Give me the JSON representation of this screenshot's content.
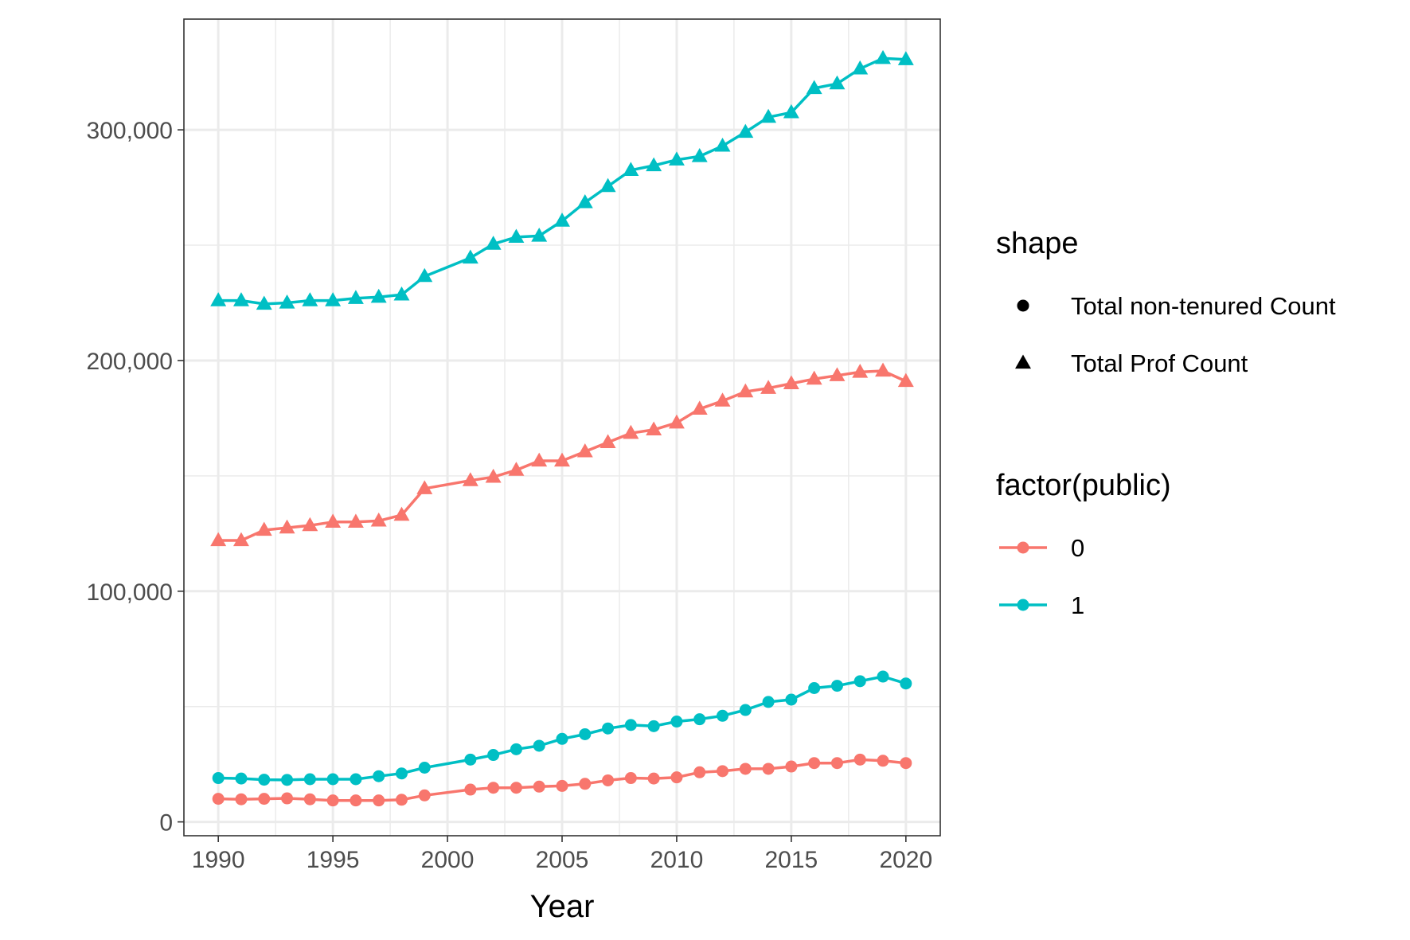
{
  "chart_data": {
    "type": "line",
    "title": "",
    "xlabel": "Year",
    "ylabel": "",
    "xlim": [
      1988.5,
      2021.5
    ],
    "ylim": [
      -6000,
      348000
    ],
    "x_ticks": [
      1990,
      1995,
      2000,
      2005,
      2010,
      2015,
      2020
    ],
    "x_tick_labels": [
      "1990",
      "1995",
      "2000",
      "2005",
      "2010",
      "2015",
      "2020"
    ],
    "y_ticks": [
      0,
      100000,
      200000,
      300000
    ],
    "y_tick_labels": [
      "0",
      "100,000",
      "200,000",
      "300,000"
    ],
    "y_minor_ticks": [
      50000,
      150000,
      250000
    ],
    "x_minor_ticks": [
      1992.5,
      1997.5,
      2002.5,
      2007.5,
      2012.5,
      2017.5
    ],
    "grid": true,
    "legend_position": "right",
    "legend": {
      "shape": {
        "title": "shape",
        "entries": [
          {
            "label": "Total non-tenured Count",
            "marker": "circle"
          },
          {
            "label": "Total Prof Count",
            "marker": "triangle"
          }
        ]
      },
      "color": {
        "title": "factor(public)",
        "entries": [
          {
            "label": "0",
            "color": "#F8766D"
          },
          {
            "label": "1",
            "color": "#00BFC4"
          }
        ]
      }
    },
    "series": [
      {
        "public": "1",
        "measure": "Total Prof Count",
        "color": "#00BFC4",
        "marker": "triangle",
        "x": [
          1990,
          1991,
          1992,
          1993,
          1994,
          1995,
          1996,
          1997,
          1998,
          1999,
          2001,
          2002,
          2003,
          2004,
          2005,
          2006,
          2007,
          2008,
          2009,
          2010,
          2011,
          2012,
          2013,
          2014,
          2015,
          2016,
          2017,
          2018,
          2019,
          2020
        ],
        "y": [
          226000,
          226000,
          224500,
          225000,
          226000,
          226000,
          227000,
          227500,
          228500,
          236500,
          244500,
          250500,
          253500,
          254000,
          260500,
          268500,
          275500,
          282500,
          284500,
          287000,
          288500,
          293000,
          299000,
          305500,
          307500,
          318000,
          320000,
          326500,
          331000,
          330500
        ]
      },
      {
        "public": "0",
        "measure": "Total Prof Count",
        "color": "#F8766D",
        "marker": "triangle",
        "x": [
          1990,
          1991,
          1992,
          1993,
          1994,
          1995,
          1996,
          1997,
          1998,
          1999,
          2001,
          2002,
          2003,
          2004,
          2005,
          2006,
          2007,
          2008,
          2009,
          2010,
          2011,
          2012,
          2013,
          2014,
          2015,
          2016,
          2017,
          2018,
          2019,
          2020
        ],
        "y": [
          122000,
          122000,
          126500,
          127500,
          128500,
          130000,
          130000,
          130500,
          133000,
          144500,
          148000,
          149500,
          152500,
          156500,
          156500,
          160500,
          164500,
          168500,
          170000,
          173000,
          179000,
          182500,
          186500,
          188000,
          190000,
          192000,
          193500,
          195000,
          195500,
          191000
        ]
      },
      {
        "public": "1",
        "measure": "Total non-tenured Count",
        "color": "#00BFC4",
        "marker": "circle",
        "x": [
          1990,
          1991,
          1992,
          1993,
          1994,
          1995,
          1996,
          1997,
          1998,
          1999,
          2001,
          2002,
          2003,
          2004,
          2005,
          2006,
          2007,
          2008,
          2009,
          2010,
          2011,
          2012,
          2013,
          2014,
          2015,
          2016,
          2017,
          2018,
          2019,
          2020
        ],
        "y": [
          19000,
          18800,
          18300,
          18200,
          18500,
          18500,
          18500,
          19800,
          21000,
          23500,
          27000,
          29000,
          31500,
          33000,
          36000,
          38000,
          40500,
          42000,
          41500,
          43500,
          44500,
          46000,
          48500,
          52000,
          53000,
          58000,
          59000,
          61000,
          63000,
          60000
        ]
      },
      {
        "public": "0",
        "measure": "Total non-tenured Count",
        "color": "#F8766D",
        "marker": "circle",
        "x": [
          1990,
          1991,
          1992,
          1993,
          1994,
          1995,
          1996,
          1997,
          1998,
          1999,
          2001,
          2002,
          2003,
          2004,
          2005,
          2006,
          2007,
          2008,
          2009,
          2010,
          2011,
          2012,
          2013,
          2014,
          2015,
          2016,
          2017,
          2018,
          2019,
          2020
        ],
        "y": [
          10000,
          9800,
          10000,
          10200,
          9800,
          9300,
          9300,
          9300,
          9600,
          11500,
          14000,
          14800,
          14800,
          15300,
          15600,
          16500,
          18000,
          19000,
          18800,
          19300,
          21500,
          22000,
          23000,
          23000,
          24000,
          25500,
          25500,
          27000,
          26500,
          25500
        ]
      }
    ]
  }
}
